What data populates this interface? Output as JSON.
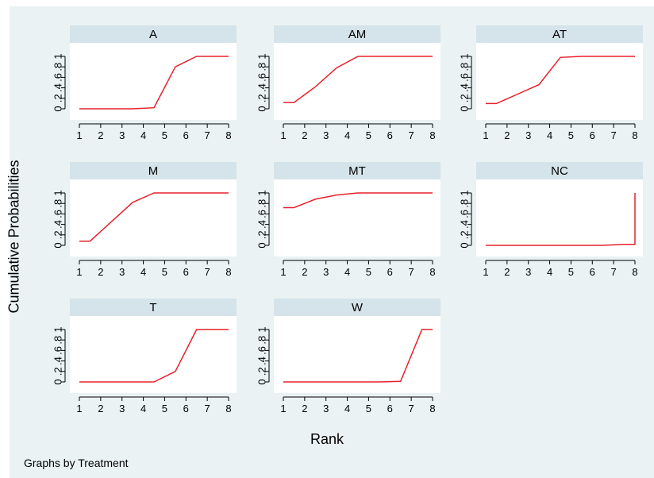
{
  "figure": {
    "ylabel": "Cumulative Probabilities",
    "xlabel": "Rank",
    "note": "Graphs by Treatment"
  },
  "line_color": "#e8202a",
  "chart_data": [
    {
      "type": "line",
      "title": "A",
      "x": [
        1,
        1.5,
        2.5,
        3.5,
        4.5,
        5.5,
        6.5,
        7.5,
        8
      ],
      "y": [
        0,
        0,
        0,
        0,
        0.02,
        0.8,
        1,
        1,
        1
      ],
      "xticks": [
        1,
        2,
        3,
        4,
        5,
        6,
        7,
        8
      ],
      "yticks": [
        "0",
        ".2",
        ".4",
        ".6",
        ".8",
        "1"
      ],
      "xlim": [
        1,
        8
      ],
      "ylim": [
        0,
        1
      ]
    },
    {
      "type": "line",
      "title": "AM",
      "x": [
        1,
        1.5,
        2.5,
        3.5,
        4.5,
        5.5,
        6.5,
        7.5,
        8
      ],
      "y": [
        0.12,
        0.12,
        0.42,
        0.78,
        1,
        1,
        1,
        1,
        1
      ],
      "xticks": [
        1,
        2,
        3,
        4,
        5,
        6,
        7,
        8
      ],
      "yticks": [
        "0",
        ".2",
        ".4",
        ".6",
        ".8",
        "1"
      ],
      "xlim": [
        1,
        8
      ],
      "ylim": [
        0,
        1
      ]
    },
    {
      "type": "line",
      "title": "AT",
      "x": [
        1,
        1.5,
        2.5,
        3.5,
        4.5,
        5.5,
        6.5,
        7.5,
        8
      ],
      "y": [
        0.1,
        0.1,
        0.28,
        0.46,
        0.98,
        1,
        1,
        1,
        1
      ],
      "xticks": [
        1,
        2,
        3,
        4,
        5,
        6,
        7,
        8
      ],
      "yticks": [
        "0",
        ".2",
        ".4",
        ".6",
        ".8",
        "1"
      ],
      "xlim": [
        1,
        8
      ],
      "ylim": [
        0,
        1
      ]
    },
    {
      "type": "line",
      "title": "M",
      "x": [
        1,
        1.5,
        2.5,
        3.5,
        4.5,
        5.5,
        6.5,
        7.5,
        8
      ],
      "y": [
        0.08,
        0.08,
        0.45,
        0.82,
        1,
        1,
        1,
        1,
        1
      ],
      "xticks": [
        1,
        2,
        3,
        4,
        5,
        6,
        7,
        8
      ],
      "yticks": [
        "0",
        ".2",
        ".4",
        ".6",
        ".8",
        "1"
      ],
      "xlim": [
        1,
        8
      ],
      "ylim": [
        0,
        1
      ]
    },
    {
      "type": "line",
      "title": "MT",
      "x": [
        1,
        1.5,
        2.5,
        3.5,
        4.5,
        5.5,
        6.5,
        7.5,
        8
      ],
      "y": [
        0.72,
        0.72,
        0.88,
        0.96,
        1,
        1,
        1,
        1,
        1
      ],
      "xticks": [
        1,
        2,
        3,
        4,
        5,
        6,
        7,
        8
      ],
      "yticks": [
        "0",
        ".2",
        ".4",
        ".6",
        ".8",
        "1"
      ],
      "xlim": [
        1,
        8
      ],
      "ylim": [
        0,
        1
      ]
    },
    {
      "type": "line",
      "title": "NC",
      "x": [
        1,
        1.5,
        2.5,
        3.5,
        4.5,
        5.5,
        6.5,
        7.5,
        8,
        8
      ],
      "y": [
        0,
        0,
        0,
        0,
        0,
        0,
        0,
        0.02,
        0.02,
        1
      ],
      "xticks": [
        1,
        2,
        3,
        4,
        5,
        6,
        7,
        8
      ],
      "yticks": [
        "0",
        ".2",
        ".4",
        ".6",
        ".8",
        "1"
      ],
      "xlim": [
        1,
        8
      ],
      "ylim": [
        0,
        1
      ]
    },
    {
      "type": "line",
      "title": "T",
      "x": [
        1,
        1.5,
        2.5,
        3.5,
        4.5,
        5.5,
        6.5,
        7.5,
        8
      ],
      "y": [
        0,
        0,
        0,
        0,
        0,
        0.2,
        1,
        1,
        1
      ],
      "xticks": [
        1,
        2,
        3,
        4,
        5,
        6,
        7,
        8
      ],
      "yticks": [
        "0",
        ".2",
        ".4",
        ".6",
        ".8",
        "1"
      ],
      "xlim": [
        1,
        8
      ],
      "ylim": [
        0,
        1
      ]
    },
    {
      "type": "line",
      "title": "W",
      "x": [
        1,
        1.5,
        2.5,
        3.5,
        4.5,
        5.5,
        6.5,
        7.5,
        8
      ],
      "y": [
        0,
        0,
        0,
        0,
        0,
        0,
        0.01,
        1,
        1
      ],
      "xticks": [
        1,
        2,
        3,
        4,
        5,
        6,
        7,
        8
      ],
      "yticks": [
        "0",
        ".2",
        ".4",
        ".6",
        ".8",
        "1"
      ],
      "xlim": [
        1,
        8
      ],
      "ylim": [
        0,
        1
      ]
    }
  ]
}
